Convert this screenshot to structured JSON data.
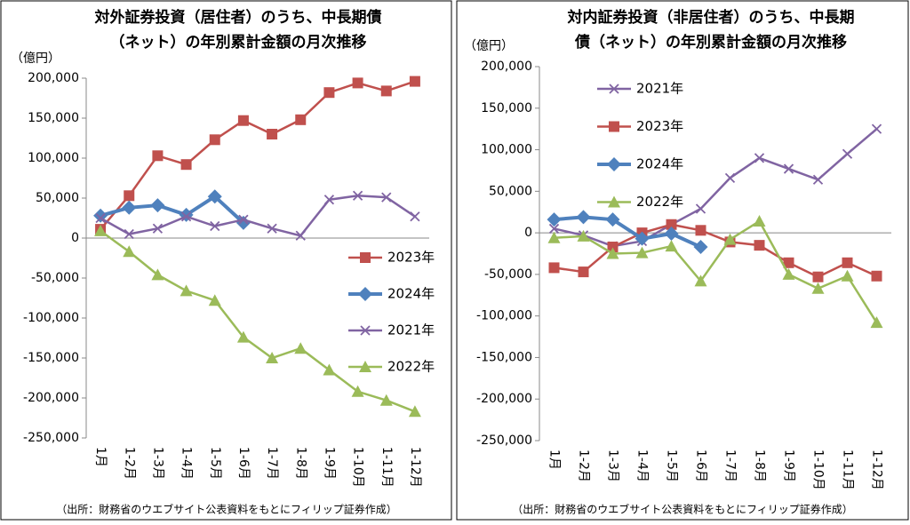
{
  "chart_data": [
    {
      "type": "line",
      "title": [
        "対外証券投資（居住者）のうち、中長期債",
        "（ネット）の年別累計金額の月次推移"
      ],
      "ylabel": "（億円）",
      "source": "（出所：財務省のウエブサイト公表資料をもとにフィリップ証券作成）",
      "categories": [
        "1月",
        "1-2月",
        "1-3月",
        "1-4月",
        "1-5月",
        "1-6月",
        "1-7月",
        "1-8月",
        "1-9月",
        "1-10月",
        "1-11月",
        "1-12月"
      ],
      "ylim": [
        -250000,
        200000
      ],
      "yticks": [
        {
          "value": 200000,
          "label": "200,000"
        },
        {
          "value": 150000,
          "label": "150,000"
        },
        {
          "value": 100000,
          "label": "100,000"
        },
        {
          "value": 50000,
          "label": "50,000"
        },
        0,
        {
          "value": -50000,
          "label": "-50,000"
        },
        {
          "value": -100000,
          "label": "-100,000"
        },
        {
          "value": -150000,
          "label": "-150,000"
        },
        {
          "value": -200000,
          "label": "-200,000"
        },
        {
          "value": -250000,
          "label": "-250,000"
        }
      ],
      "grid": false,
      "legend": "lower right",
      "series": [
        {
          "name": "2023年",
          "color": "#c0504d",
          "marker": "square",
          "values": [
            11000,
            53000,
            103000,
            92000,
            123000,
            147000,
            130000,
            148000,
            182000,
            194000,
            184000,
            196000
          ]
        },
        {
          "name": "2024年",
          "color": "#4f81bd",
          "marker": "diamond",
          "values": [
            28000,
            38000,
            41000,
            29000,
            52000,
            19000,
            null,
            null,
            null,
            null,
            null,
            null
          ]
        },
        {
          "name": "2021年",
          "color": "#8064a2",
          "marker": "x",
          "values": [
            25000,
            5000,
            12000,
            27000,
            15000,
            23000,
            12000,
            3000,
            48000,
            53000,
            51000,
            27000
          ]
        },
        {
          "name": "2022年",
          "color": "#9bbb59",
          "marker": "triangle",
          "values": [
            9000,
            -17000,
            -46000,
            -66000,
            -78000,
            -124000,
            -150000,
            -138000,
            -165000,
            -192000,
            -203000,
            -217000
          ]
        }
      ]
    },
    {
      "type": "line",
      "title": [
        "対内証券投資（非居住者）のうち、中長期",
        "債（ネット）の年別累計金額の月次推移"
      ],
      "ylabel": "（億円）",
      "source": "（出所：財務省のウエブサイト公表資料をもとにフィリップ証券作成）",
      "categories": [
        "1月",
        "1-2月",
        "1-3月",
        "1-4月",
        "1-5月",
        "1-6月",
        "1-7月",
        "1-8月",
        "1-9月",
        "1-10月",
        "1-11月",
        "1-12月"
      ],
      "ylim": [
        -250000,
        200000
      ],
      "yticks": [
        {
          "value": 200000,
          "label": "200,000"
        },
        {
          "value": 150000,
          "label": "150,000"
        },
        {
          "value": 100000,
          "label": "100,000"
        },
        {
          "value": 50000,
          "label": "50,000"
        },
        0,
        {
          "value": -50000,
          "label": "-50,000"
        },
        {
          "value": -100000,
          "label": "-100,000"
        },
        {
          "value": -150000,
          "label": "-150,000"
        },
        {
          "value": -200000,
          "label": "-200,000"
        },
        {
          "value": -250000,
          "label": "-250,000"
        }
      ],
      "grid": false,
      "legend": "upper left",
      "series": [
        {
          "name": "2021年",
          "color": "#8064a2",
          "marker": "x",
          "values": [
            5000,
            -3000,
            -16000,
            -10000,
            10000,
            29000,
            66000,
            90000,
            77000,
            64000,
            95000,
            125000
          ]
        },
        {
          "name": "2023年",
          "color": "#c0504d",
          "marker": "square",
          "values": [
            -42000,
            -47000,
            -17000,
            0,
            10000,
            3000,
            -11000,
            -15000,
            -36000,
            -53000,
            -36000,
            -52000
          ]
        },
        {
          "name": "2024年",
          "color": "#4f81bd",
          "marker": "diamond",
          "values": [
            16000,
            19000,
            16000,
            -7000,
            -1000,
            -17000,
            null,
            null,
            null,
            null,
            null,
            null
          ]
        },
        {
          "name": "2022年",
          "color": "#9bbb59",
          "marker": "triangle",
          "values": [
            -6000,
            -4000,
            -25000,
            -24000,
            -16000,
            -58000,
            -8000,
            14000,
            -50000,
            -67000,
            -52000,
            -108000
          ]
        }
      ]
    }
  ]
}
